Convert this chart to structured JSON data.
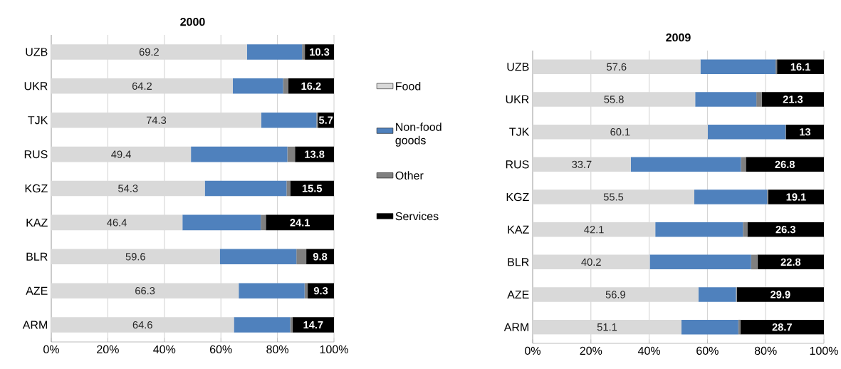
{
  "chart_data": [
    {
      "type": "bar",
      "orientation": "horizontal",
      "stacked": true,
      "title": "2000",
      "categories": [
        "UZB",
        "UKR",
        "TJK",
        "RUS",
        "KGZ",
        "KAZ",
        "BLR",
        "AZE",
        "ARM"
      ],
      "series": [
        {
          "name": "Food",
          "color": "#d9d9d9",
          "values": [
            69.2,
            64.2,
            74.3,
            49.4,
            54.3,
            46.4,
            59.6,
            66.3,
            64.6
          ],
          "value_labels": [
            "69.2",
            "64.2",
            "74.3",
            "49.4",
            "54.3",
            "46.4",
            "59.6",
            "66.3",
            "64.6"
          ]
        },
        {
          "name": "Non-food goods",
          "color": "#4f81bd",
          "values": [
            19.5,
            17.8,
            19.5,
            34.1,
            28.9,
            27.7,
            27.1,
            23.3,
            19.9
          ]
        },
        {
          "name": "Other",
          "color": "#808080",
          "values": [
            1.0,
            1.8,
            0.5,
            2.7,
            1.3,
            1.8,
            3.5,
            1.1,
            0.8
          ]
        },
        {
          "name": "Services",
          "color": "#000000",
          "values": [
            10.3,
            16.2,
            5.7,
            13.8,
            15.5,
            24.1,
            9.8,
            9.3,
            14.7
          ],
          "value_labels": [
            "10.3",
            "16.2",
            "5.7",
            "13.8",
            "15.5",
            "24.1",
            "9.8",
            "9.3",
            "14.7"
          ]
        }
      ],
      "xlim": [
        0,
        100
      ],
      "xticks": [
        {
          "value": 0,
          "label": "0%"
        },
        {
          "value": 20,
          "label": "20%"
        },
        {
          "value": 40,
          "label": "40%"
        },
        {
          "value": 60,
          "label": "60%"
        },
        {
          "value": 80,
          "label": "80%"
        },
        {
          "value": 100,
          "label": "100%"
        }
      ],
      "grid": "x",
      "legend": "right"
    },
    {
      "type": "bar",
      "orientation": "horizontal",
      "stacked": true,
      "title": "2009",
      "categories": [
        "UZB",
        "UKR",
        "TJK",
        "RUS",
        "KGZ",
        "KAZ",
        "BLR",
        "AZE",
        "ARM"
      ],
      "series": [
        {
          "color": "#d9d9d9",
          "values": [
            57.6,
            55.8,
            60.1,
            33.7,
            55.5,
            42.1,
            40.2,
            56.9,
            51.1
          ],
          "value_labels": [
            "57.6",
            "55.8",
            "60.1",
            "33.7",
            "55.5",
            "42.1",
            "40.2",
            "56.9",
            "51.1"
          ]
        },
        {
          "color": "#4f81bd",
          "values": [
            25.8,
            21.0,
            26.7,
            37.8,
            25.0,
            30.1,
            34.8,
            12.9,
            19.5
          ]
        },
        {
          "color": "#808080",
          "values": [
            0.5,
            1.9,
            0.2,
            1.7,
            0.4,
            1.5,
            2.2,
            0.3,
            0.7
          ]
        },
        {
          "color": "#000000",
          "values": [
            16.1,
            21.3,
            13,
            26.8,
            19.1,
            26.3,
            22.8,
            29.9,
            28.7
          ],
          "value_labels": [
            "16.1",
            "21.3",
            "13",
            "26.8",
            "19.1",
            "26.3",
            "22.8",
            "29.9",
            "28.7"
          ]
        }
      ],
      "xlim": [
        0,
        100
      ],
      "xticks": [
        {
          "value": 0,
          "label": "0%"
        },
        {
          "value": 20,
          "label": "20%"
        },
        {
          "value": 40,
          "label": "40%"
        },
        {
          "value": 60,
          "label": "60%"
        },
        {
          "value": 80,
          "label": "80%"
        },
        {
          "value": 100,
          "label": "100%"
        }
      ],
      "grid": "x"
    }
  ]
}
